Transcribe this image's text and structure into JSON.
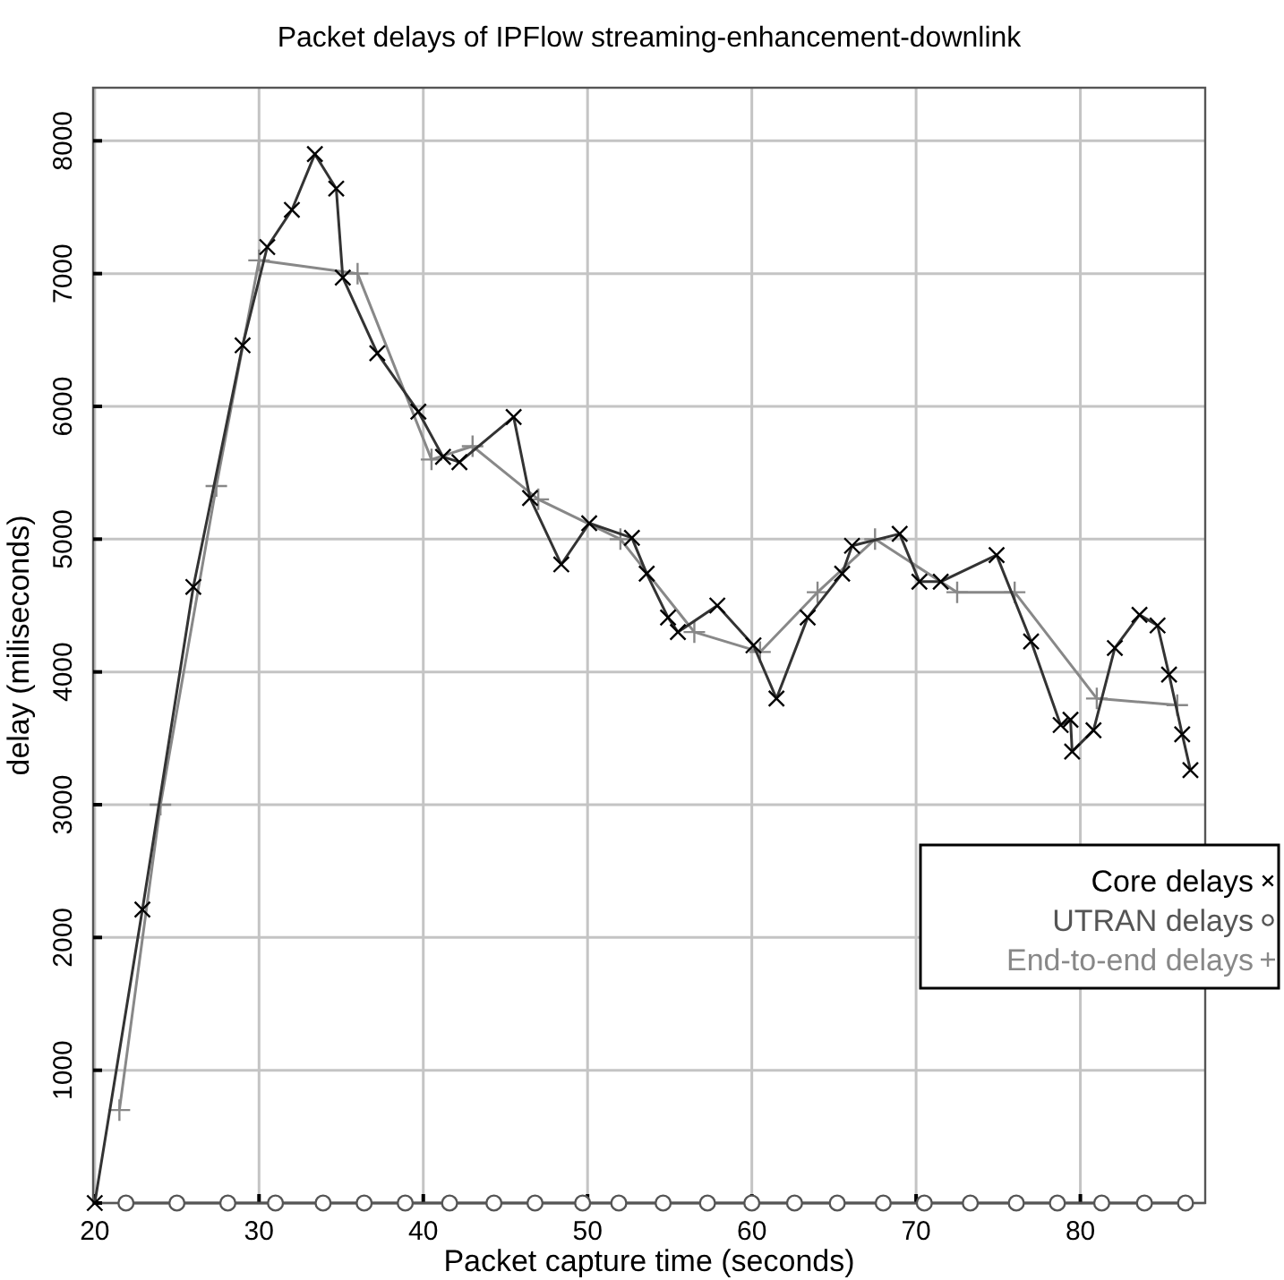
{
  "chart_data": {
    "type": "line",
    "title": "Packet delays of IPFlow streaming-enhancement-downlink",
    "xlabel": "Packet capture time (seconds)",
    "ylabel": "delay (miliseconds)",
    "xlim": [
      19.9,
      87.6
    ],
    "ylim": [
      0,
      8400
    ],
    "xticks": [
      20,
      30,
      40,
      50,
      60,
      70,
      80
    ],
    "yticks": [
      {
        "value": 0,
        "label": null
      },
      1000,
      2000,
      3000,
      4000,
      5000,
      6000,
      7000,
      8000
    ],
    "grid": true,
    "legend": "right",
    "series": [
      {
        "name": "Core delays",
        "color": "#333333",
        "marker": "cross",
        "x": [
          20,
          22.9,
          26.0,
          29.0,
          30.5,
          32.0,
          33.4,
          34.7,
          35.1,
          37.2,
          39.7,
          41.2,
          42.2,
          45.5,
          46.5,
          48.4,
          50.1,
          52.7,
          53.6,
          54.9,
          55.5,
          57.9,
          60.1,
          61.5,
          63.4,
          65.5,
          66.1,
          69.0,
          70.2,
          71.5,
          74.9,
          77.0,
          78.8,
          79.4,
          79.5,
          80.8,
          82.1,
          83.6,
          84.7,
          85.4,
          86.2,
          86.7
        ],
        "values": [
          0,
          2210,
          4640,
          6460,
          7200,
          7480,
          7900,
          7640,
          6970,
          6400,
          5960,
          5620,
          5580,
          5920,
          5310,
          4810,
          5120,
          5010,
          4740,
          4410,
          4300,
          4500,
          4200,
          3800,
          4410,
          4740,
          4950,
          5040,
          4680,
          4680,
          4880,
          4230,
          3600,
          3640,
          3400,
          3560,
          4180,
          4430,
          4350,
          3980,
          3530,
          3260
        ]
      },
      {
        "name": "UTRAN delays",
        "color": "#555555",
        "marker": "circle",
        "x": [
          21.9,
          25.0,
          28.1,
          31.0,
          33.9,
          36.4,
          38.9,
          41.6,
          44.3,
          46.8,
          49.7,
          51.9,
          54.6,
          57.3,
          60.0,
          62.6,
          65.2,
          68.0,
          70.5,
          73.3,
          76.1,
          78.6,
          81.3,
          83.9,
          86.4
        ],
        "values": [
          0,
          0,
          0,
          0,
          0,
          0,
          0,
          0,
          0,
          0,
          0,
          0,
          0,
          0,
          0,
          0,
          0,
          0,
          0,
          0,
          0,
          0,
          0,
          0,
          0
        ]
      },
      {
        "name": "End-to-end delays",
        "color": "#888888",
        "marker": "cross",
        "x": [
          21.5,
          24.0,
          27.4,
          30.0,
          36.0,
          40.5,
          43.0,
          47.0,
          52.0,
          56.5,
          60.5,
          64.0,
          67.5,
          72.5,
          76.0,
          81.0,
          85.9
        ],
        "values": [
          700,
          3000,
          5400,
          7100,
          7000,
          5600,
          5700,
          5300,
          5000,
          4300,
          4150,
          4600,
          5000,
          4600,
          4600,
          3800,
          3750
        ]
      }
    ]
  }
}
